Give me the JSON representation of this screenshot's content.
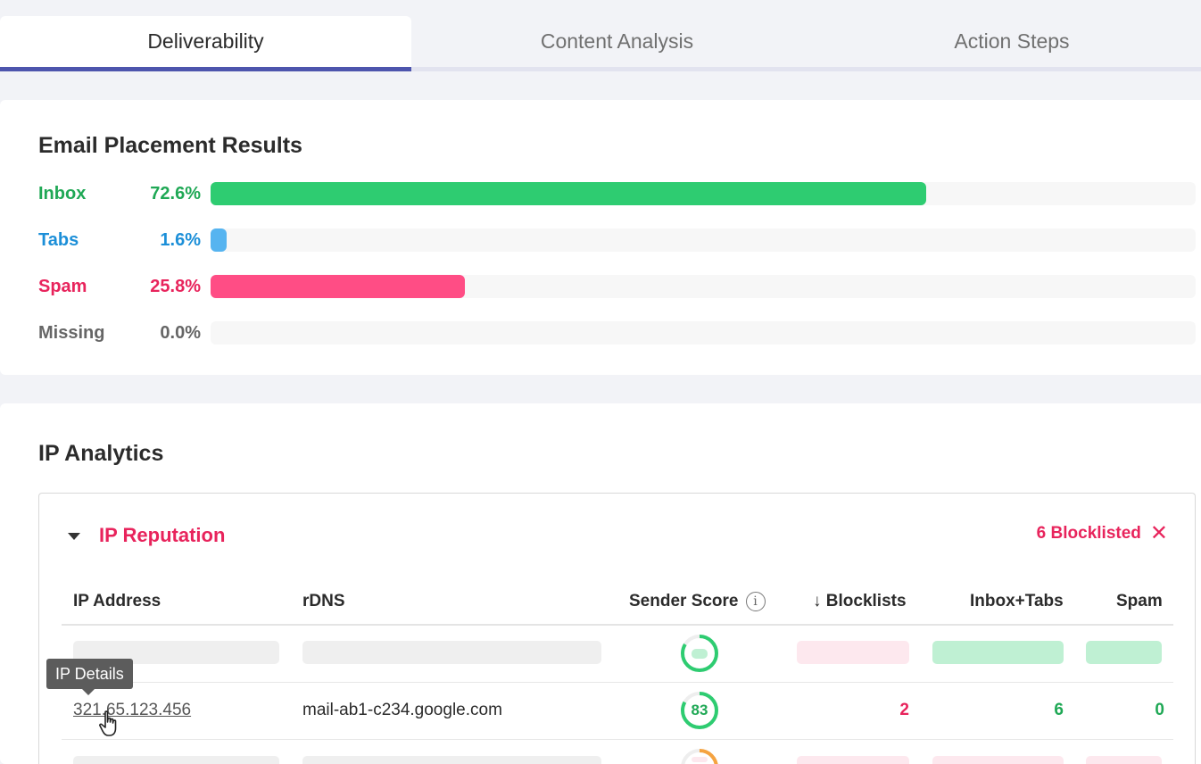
{
  "tabs": [
    {
      "label": "Deliverability",
      "active": true
    },
    {
      "label": "Content Analysis",
      "active": false
    },
    {
      "label": "Action Steps",
      "active": false
    }
  ],
  "placement": {
    "title": "Email Placement Results",
    "rows": [
      {
        "label": "Inbox",
        "value": "72.6%",
        "percent": 72.6,
        "color": "#2ecc71",
        "text_color": "#1fa855"
      },
      {
        "label": "Tabs",
        "value": "1.6%",
        "percent": 1.6,
        "color": "#56b4f0",
        "text_color": "#1c8fd8"
      },
      {
        "label": "Spam",
        "value": "25.8%",
        "percent": 25.8,
        "color": "#ff4d85",
        "text_color": "#e8245c"
      },
      {
        "label": "Missing",
        "value": "0.0%",
        "percent": 0.0,
        "color": "#cccccc",
        "text_color": "#666666"
      }
    ]
  },
  "ip_analytics": {
    "title": "IP Analytics",
    "reputation": {
      "title": "IP Reputation",
      "blocklisted_label": "6 Blocklisted",
      "columns": {
        "ip": "IP Address",
        "rdns": "rDNS",
        "sender_score": "Sender Score",
        "blocklists": "Blocklists",
        "inbox_tabs": "Inbox+Tabs",
        "spam": "Spam"
      },
      "sort_icon": "arrow-down-icon",
      "row": {
        "ip": "321.65.123.456",
        "rdns": "mail-ab1-c234.google.com",
        "sender_score": "83",
        "sender_score_percent": 83,
        "blocklists": "2",
        "inbox_tabs": "6",
        "spam": "0"
      },
      "tooltip": "IP Details"
    }
  },
  "colors": {
    "accent": "#4d55ad",
    "green": "#1fa855",
    "pink": "#e8245c",
    "blue": "#1c8fd8"
  }
}
